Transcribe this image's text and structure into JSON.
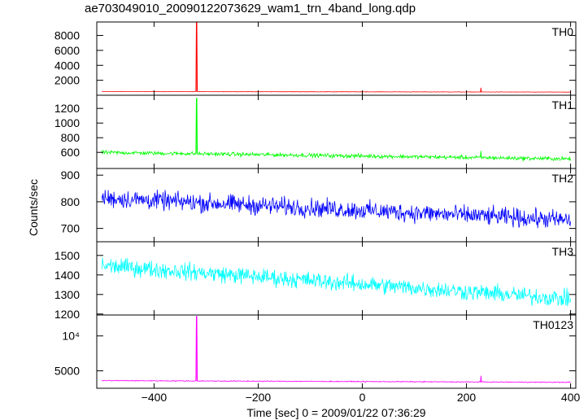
{
  "chart_data": {
    "type": "line",
    "title": "ae703049010_20090122073629_wam1_trn_4band_long.qdp",
    "xlabel": "Time [sec] 0 = 2009/01/22 07:36:29",
    "ylabel": "Counts/sec",
    "xlim": [
      -510,
      410
    ],
    "x_ticks": [
      -400,
      -200,
      0,
      200,
      400
    ],
    "x_tick_labels": [
      "−400",
      "−200",
      "0",
      "200",
      "400"
    ],
    "grid": false,
    "panels": [
      {
        "name": "TH0",
        "color": "#ff0000",
        "ylim": [
          0,
          9800
        ],
        "y_ticks": [
          2000,
          4000,
          6000,
          8000
        ],
        "y_tick_labels": [
          "2000",
          "4000",
          "6000",
          "8000"
        ],
        "baseline_start": 500,
        "baseline_end": 420,
        "noise": 25,
        "spikes": [
          {
            "x": -318,
            "y": 9700
          },
          {
            "x": 228,
            "y": 1000
          }
        ]
      },
      {
        "name": "TH1",
        "color": "#00ff00",
        "ylim": [
          380,
          1380
        ],
        "y_ticks": [
          600,
          800,
          1000,
          1200
        ],
        "y_tick_labels": [
          "600",
          "800",
          "1000",
          "1200"
        ],
        "baseline_start": 600,
        "baseline_end": 510,
        "noise": 25,
        "spikes": [
          {
            "x": -318,
            "y": 1340
          },
          {
            "x": 228,
            "y": 620
          }
        ]
      },
      {
        "name": "TH2",
        "color": "#0000ff",
        "ylim": [
          650,
          925
        ],
        "y_ticks": [
          700,
          800,
          900
        ],
        "y_tick_labels": [
          "700",
          "800",
          "900"
        ],
        "baseline_start": 815,
        "baseline_end": 730,
        "noise": 32,
        "spikes": []
      },
      {
        "name": "TH3",
        "color": "#00ffff",
        "ylim": [
          1195,
          1570
        ],
        "y_ticks": [
          1200,
          1300,
          1400,
          1500
        ],
        "y_tick_labels": [
          "1200",
          "1300",
          "1400",
          "1500"
        ],
        "baseline_start": 1450,
        "baseline_end": 1275,
        "noise": 40,
        "spikes": []
      },
      {
        "name": "TH0123",
        "color": "#ff00ff",
        "ylim": [
          2500,
          13000
        ],
        "y_ticks": [
          5000,
          10000
        ],
        "y_tick_labels": [
          "5000",
          "10⁴"
        ],
        "baseline_start": 3600,
        "baseline_end": 3350,
        "noise": 60,
        "spikes": [
          {
            "x": -318,
            "y": 12800
          },
          {
            "x": 228,
            "y": 4300
          }
        ]
      }
    ]
  }
}
